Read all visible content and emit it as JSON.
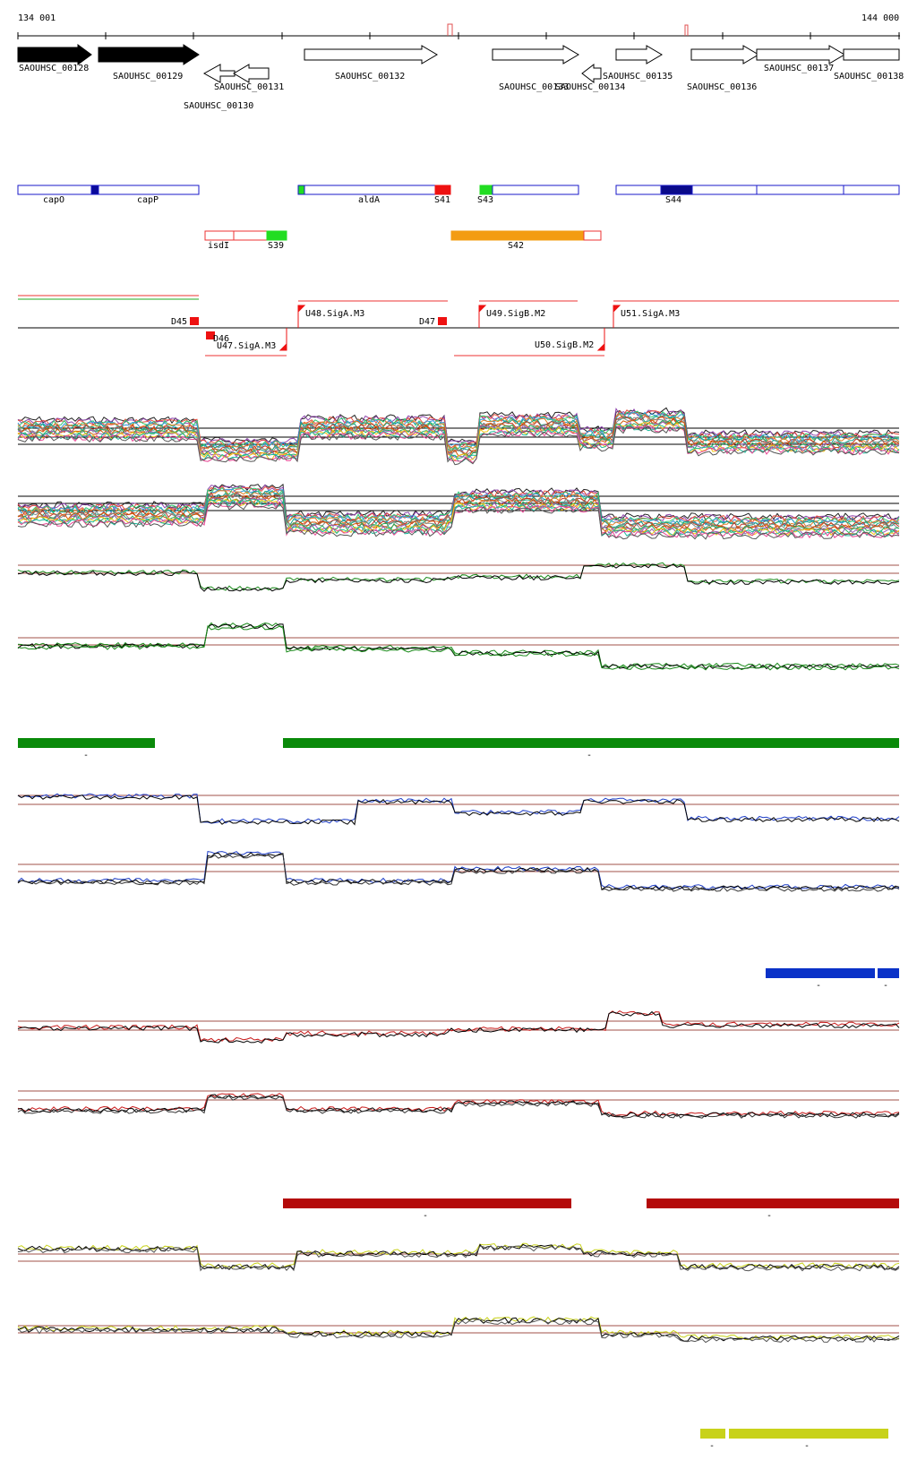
{
  "ruler": {
    "start_label": "134 001",
    "end_label": "144 000"
  },
  "genes": [
    {
      "name": "SAOUHSC_00128",
      "strand": "+",
      "fill": "#000000"
    },
    {
      "name": "SAOUHSC_00129",
      "strand": "+",
      "fill": "#000000"
    },
    {
      "name": "SAOUHSC_00130",
      "strand": "-",
      "fill": "#ffffff"
    },
    {
      "name": "SAOUHSC_00131",
      "strand": "-",
      "fill": "#ffffff"
    },
    {
      "name": "SAOUHSC_00132",
      "strand": "+",
      "fill": "#ffffff"
    },
    {
      "name": "SAOUHSC_00133",
      "strand": "+",
      "fill": "#ffffff"
    },
    {
      "name": "SAOUHSC_00134",
      "strand": "-",
      "fill": "#ffffff"
    },
    {
      "name": "SAOUHSC_00135",
      "strand": "+",
      "fill": "#ffffff"
    },
    {
      "name": "SAOUHSC_00136",
      "strand": "+",
      "fill": "#ffffff"
    },
    {
      "name": "SAOUHSC_00137",
      "strand": "+",
      "fill": "#ffffff"
    },
    {
      "name": "SAOUHSC_00138",
      "strand": "+",
      "fill": "#ffffff"
    }
  ],
  "features_row1": [
    {
      "label": "capO"
    },
    {
      "label": "capP"
    },
    {
      "label": "aldA"
    },
    {
      "label": "S41"
    },
    {
      "label": "S43"
    },
    {
      "label": "S44"
    }
  ],
  "features_row2": [
    {
      "label": "isdI"
    },
    {
      "label": "S39"
    },
    {
      "label": "S42"
    }
  ],
  "regulatory": [
    {
      "label": "D45"
    },
    {
      "label": "D46"
    },
    {
      "label": "U47.SigA.M3"
    },
    {
      "label": "U48.SigA.M3"
    },
    {
      "label": "D47"
    },
    {
      "label": "U49.SigB.M2"
    },
    {
      "label": "U50.SigB.M2"
    },
    {
      "label": "U51.SigA.M3"
    }
  ],
  "track_colors": {
    "all_samples": "multicolor",
    "green": "#1a8a1a",
    "blue": "#1f3fc8",
    "red": "#c81a1a",
    "yellow": "#c8d21a",
    "threshold": "#a0504a"
  },
  "segment_colors": {
    "green": "#0a8a0a",
    "blue": "#0a32c8",
    "red": "#b40a0a",
    "yellow": "#c8d21a"
  },
  "segment_marks": {
    "minus": "-"
  }
}
